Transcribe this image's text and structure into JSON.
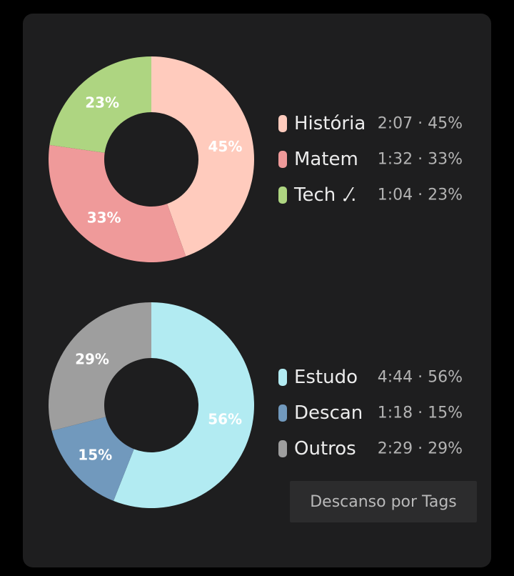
{
  "chart_data": [
    {
      "type": "pie",
      "donut": true,
      "categories": [
        "História",
        "Matem",
        "Tech .⁄."
      ],
      "values": [
        45,
        33,
        23
      ],
      "slice_labels": [
        "45%",
        "33%",
        "23%"
      ],
      "colors": [
        "#ffcbbd",
        "#ef9a9a",
        "#aed581"
      ],
      "legend": [
        {
          "name": "História",
          "value": "2:07 · 45%",
          "color": "#ffcbbd"
        },
        {
          "name": "Matem",
          "value": "1:32 · 33%",
          "color": "#ef9a9a"
        },
        {
          "name": "Tech .⁄.",
          "value": "1:04 · 23%",
          "color": "#aed581"
        }
      ],
      "legend_placement": "right"
    },
    {
      "type": "pie",
      "donut": true,
      "categories": [
        "Estudo",
        "Descan",
        "Outros"
      ],
      "values": [
        56,
        15,
        29
      ],
      "slice_labels": [
        "56%",
        "15%",
        "29%"
      ],
      "colors": [
        "#b2ebf2",
        "#7199bd",
        "#9e9e9e"
      ],
      "legend": [
        {
          "name": "Estudo",
          "value": "4:44 · 56%",
          "color": "#b2ebf2"
        },
        {
          "name": "Descan",
          "value": "1:18 · 15%",
          "color": "#7199bd"
        },
        {
          "name": "Outros",
          "value": "2:29 · 29%",
          "color": "#9e9e9e"
        }
      ],
      "legend_placement": "right"
    }
  ],
  "tag_button_label": "Descanso por Tags"
}
